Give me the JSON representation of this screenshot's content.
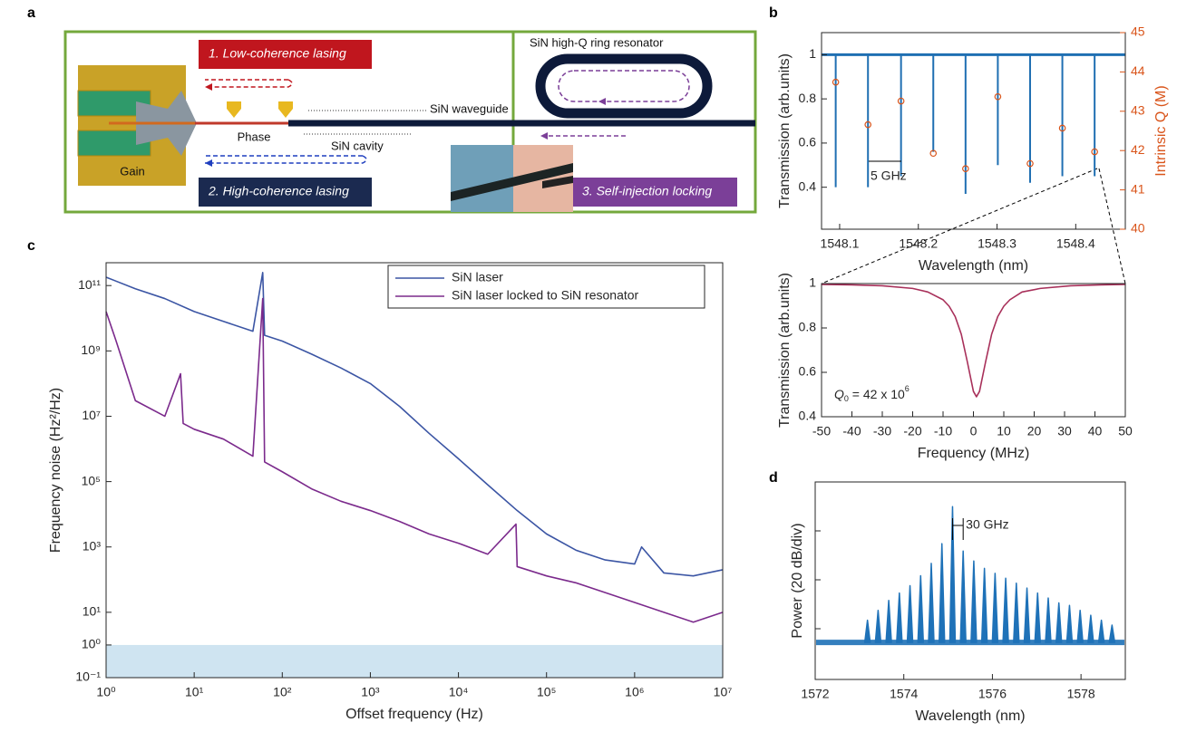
{
  "panel_labels": [
    "a",
    "b",
    "c",
    "d"
  ],
  "diagram": {
    "step_1": "1. Low-coherence lasing",
    "step_2": "2. High-coherence lasing",
    "step_3": "3. Self-injection locking",
    "ring": "SiN high-Q ring resonator",
    "waveguide": "SiN waveguide",
    "cavity": "SiN cavity",
    "phase": "Phase",
    "gain": "Gain"
  },
  "chart_data": [
    {
      "type": "stem",
      "xlabel": "Wavelength (nm)",
      "ylabel": "Transmission (arb.units)",
      "y2label": "Intrinsic Q (M)",
      "xlim": [
        1548.077,
        1548.463
      ],
      "xticks": [
        1548.1,
        1548.2,
        1548.3,
        1548.4
      ],
      "ylim": [
        0.21,
        1.1
      ],
      "yticks": [
        0.4,
        0.6,
        0.8,
        1
      ],
      "y2lim": [
        40,
        45
      ],
      "y2ticks": [
        40,
        41,
        42,
        43,
        44,
        45
      ],
      "baseline": 1,
      "x": [
        1548.095,
        1548.136,
        1548.178,
        1548.219,
        1548.26,
        1548.301,
        1548.342,
        1548.383,
        1548.424
      ],
      "series": [
        {
          "color": "#1f6fb2",
          "values": [
            0.4,
            0.4,
            0.45,
            0.56,
            0.37,
            0.5,
            0.42,
            0.45,
            0.45
          ]
        },
        {
          "color": "#d9541a",
          "axis": "y2",
          "marker": "circle",
          "values": [
            43.74,
            42.66,
            43.26,
            41.93,
            41.54,
            43.37,
            41.67,
            42.57,
            41.97
          ]
        }
      ],
      "annotation": "5 GHz"
    },
    {
      "type": "line",
      "xlabel": "Frequency (MHz)",
      "ylabel": "Transmission (arb.units)",
      "xlim": [
        -50,
        50
      ],
      "xticks": [
        -50,
        -40,
        -30,
        -20,
        -10,
        0,
        10,
        20,
        30,
        40,
        50
      ],
      "ylim": [
        0.4,
        1
      ],
      "yticks": [
        0.4,
        0.6,
        0.8,
        1
      ],
      "x": [
        -50,
        -40,
        -30,
        -20,
        -15,
        -10,
        -8,
        -6,
        -4,
        -2,
        0,
        1,
        2,
        4,
        6,
        8,
        10,
        12,
        16,
        22,
        32,
        42,
        50
      ],
      "series": [
        {
          "color": "#a8305a",
          "values": [
            0.996,
            0.994,
            0.99,
            0.978,
            0.962,
            0.927,
            0.898,
            0.851,
            0.772,
            0.647,
            0.514,
            0.49,
            0.514,
            0.647,
            0.772,
            0.851,
            0.898,
            0.927,
            0.962,
            0.978,
            0.99,
            0.994,
            0.996
          ]
        }
      ],
      "annotation": {
        "symbol": "Q",
        "subscript": "0",
        "text": " = 42 x 10",
        "superscript": "6"
      }
    },
    {
      "type": "line",
      "log_x": true,
      "log_y": true,
      "xlabel": "Offset frequency (Hz)",
      "ylabel": "Frequency noise (Hz²/Hz)",
      "xlim": [
        1,
        10000000
      ],
      "xticks": [
        {
          "value": 1,
          "label": "10⁰"
        },
        {
          "value": 10,
          "label": "10¹"
        },
        {
          "value": 100,
          "label": "10²"
        },
        {
          "value": 1000,
          "label": "10³"
        },
        {
          "value": 10000,
          "label": "10⁴"
        },
        {
          "value": 100000,
          "label": "10⁵"
        },
        {
          "value": 1000000,
          "label": "10⁶"
        },
        {
          "value": 10000000,
          "label": "10⁷"
        }
      ],
      "ylim": [
        0.1,
        500000000000.0
      ],
      "yticks": [
        {
          "value": 0.1,
          "label": "10⁻¹"
        },
        {
          "value": 1,
          "label": "10⁰"
        },
        {
          "value": 10,
          "label": "10¹"
        },
        {
          "value": 1000,
          "label": "10³"
        },
        {
          "value": 100000,
          "label": "10⁵"
        },
        {
          "value": 10000000,
          "label": "10⁷"
        },
        {
          "value": 1000000000,
          "label": "10⁹"
        },
        {
          "value": 100000000000,
          "label": "10¹¹"
        }
      ],
      "shade": {
        "range": [
          0.1,
          1
        ],
        "color": "#cfe4f1"
      },
      "legend": "upper right",
      "series": [
        {
          "name": "SiN laser",
          "color": "#3b55a4",
          "x": [
            1,
            2.15,
            4.64,
            10,
            21.5,
            46.4,
            60,
            63,
            100,
            215,
            464,
            1000,
            2150,
            4640,
            10000,
            21500,
            46400,
            100000,
            215000,
            464000,
            1000000,
            1200000,
            2150000,
            4640000,
            10000000
          ],
          "values": [
            180000000000.0,
            80000000000.0,
            40000000000.0,
            16000000000.0,
            8000000000.0,
            4000000000.0,
            250000000000.0,
            3000000000.0,
            2000000000.0,
            800000000.0,
            300000000.0,
            100000000.0,
            20000000.0,
            3000000.0,
            500000.0,
            80000.0,
            13000.0,
            2500,
            800,
            400,
            300,
            1000,
            160,
            130,
            200
          ]
        },
        {
          "name": "SiN laser locked to SiN resonator",
          "color": "#7b2a8c",
          "x": [
            1,
            1.3,
            2.15,
            4.64,
            7,
            7.5,
            10,
            21.5,
            46.4,
            60,
            63,
            100,
            215,
            464,
            1000,
            2150,
            4640,
            10000,
            21500,
            45000,
            46400,
            100000,
            215000,
            464000,
            1000000,
            2150000,
            4640000,
            10000000
          ],
          "values": [
            16000000000.0,
            2000000000.0,
            30000000.0,
            10000000.0,
            200000000.0,
            6000000.0,
            4000000.0,
            2000000.0,
            600000.0,
            40000000000.0,
            400000.0,
            200000.0,
            60000.0,
            25000.0,
            13000.0,
            6000,
            2500,
            1300,
            600,
            5000,
            250,
            130,
            80,
            40,
            20,
            10,
            5,
            10
          ]
        }
      ]
    },
    {
      "type": "comb",
      "xlabel": "Wavelength (nm)",
      "ylabel": "Power (20 dB/div)",
      "xlim": [
        1572,
        1579
      ],
      "xticks": [
        1572,
        1574,
        1576,
        1578
      ],
      "ylim": [
        0,
        80
      ],
      "floor": 15,
      "color": "#1f72b8",
      "x": [
        1573.18,
        1573.42,
        1573.66,
        1573.9,
        1574.14,
        1574.38,
        1574.62,
        1574.86,
        1575.1,
        1575.34,
        1575.58,
        1575.82,
        1576.06,
        1576.3,
        1576.54,
        1576.78,
        1577.02,
        1577.26,
        1577.5,
        1577.74,
        1577.98,
        1578.22,
        1578.46,
        1578.7
      ],
      "values": [
        24,
        28,
        32,
        35,
        38,
        42,
        47,
        55,
        70,
        52,
        48,
        45,
        43,
        41,
        39,
        37,
        35,
        33,
        31,
        30,
        28,
        26,
        24,
        22
      ],
      "annotation": "30 GHz"
    }
  ]
}
